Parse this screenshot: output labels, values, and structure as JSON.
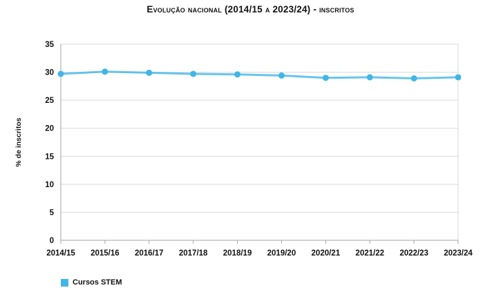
{
  "chart": {
    "title": "Evolução nacional (2014/15 a 2023/24) - inscritos",
    "ylabel": "% de inscritos",
    "legend_label": "Cursos STEM"
  },
  "chart_data": {
    "type": "line",
    "title": "Evolução nacional (2014/15 a 2023/24) - inscritos",
    "categories": [
      "2014/15",
      "2015/16",
      "2016/17",
      "2017/18",
      "2018/19",
      "2019/20",
      "2020/21",
      "2021/22",
      "2022/23",
      "2023/24"
    ],
    "series": [
      {
        "name": "Cursos STEM",
        "values": [
          29.7,
          30.1,
          29.9,
          29.7,
          29.6,
          29.4,
          29.0,
          29.1,
          28.9,
          29.1
        ],
        "color": "#41b6e6"
      }
    ],
    "xlabel": "",
    "ylabel": "% de inscritos",
    "ylim": [
      0,
      35
    ],
    "yticks": [
      0,
      5,
      10,
      15,
      20,
      25,
      30,
      35
    ],
    "grid": true,
    "legend_position": "bottom-left",
    "colors": {
      "line": "#41b6e6",
      "marker": "#3cb2e4",
      "grid": "#d9d9d9",
      "axis": "#a3a3a3",
      "text": "#111111"
    }
  }
}
